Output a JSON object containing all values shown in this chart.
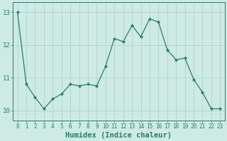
{
  "x": [
    0,
    1,
    2,
    3,
    4,
    5,
    6,
    7,
    8,
    9,
    10,
    11,
    12,
    13,
    14,
    15,
    16,
    17,
    18,
    19,
    20,
    21,
    22,
    23
  ],
  "y": [
    13.0,
    10.8,
    10.4,
    10.05,
    10.35,
    10.5,
    10.8,
    10.75,
    10.8,
    10.75,
    11.35,
    12.2,
    12.1,
    12.6,
    12.25,
    12.8,
    12.7,
    11.85,
    11.55,
    11.6,
    10.95,
    10.55,
    10.05,
    10.05
  ],
  "line_color": "#2a7d6b",
  "marker": "D",
  "marker_size": 2.0,
  "bg_color": "#cdeae4",
  "grid_color": "#aacfc8",
  "xlabel": "Humidex (Indice chaleur)",
  "xlabel_fontsize": 7.5,
  "ytick_fontsize": 6.5,
  "xtick_fontsize": 5.5,
  "yticks": [
    10,
    11,
    12,
    13
  ],
  "xtick_labels": [
    "0",
    "1",
    "2",
    "3",
    "4",
    "5",
    "6",
    "7",
    "8",
    "9",
    "10",
    "11",
    "12",
    "13",
    "14",
    "15",
    "16",
    "17",
    "18",
    "19",
    "20",
    "21",
    "22",
    "23"
  ],
  "ylim": [
    9.7,
    13.3
  ],
  "xlim": [
    -0.5,
    23.5
  ]
}
